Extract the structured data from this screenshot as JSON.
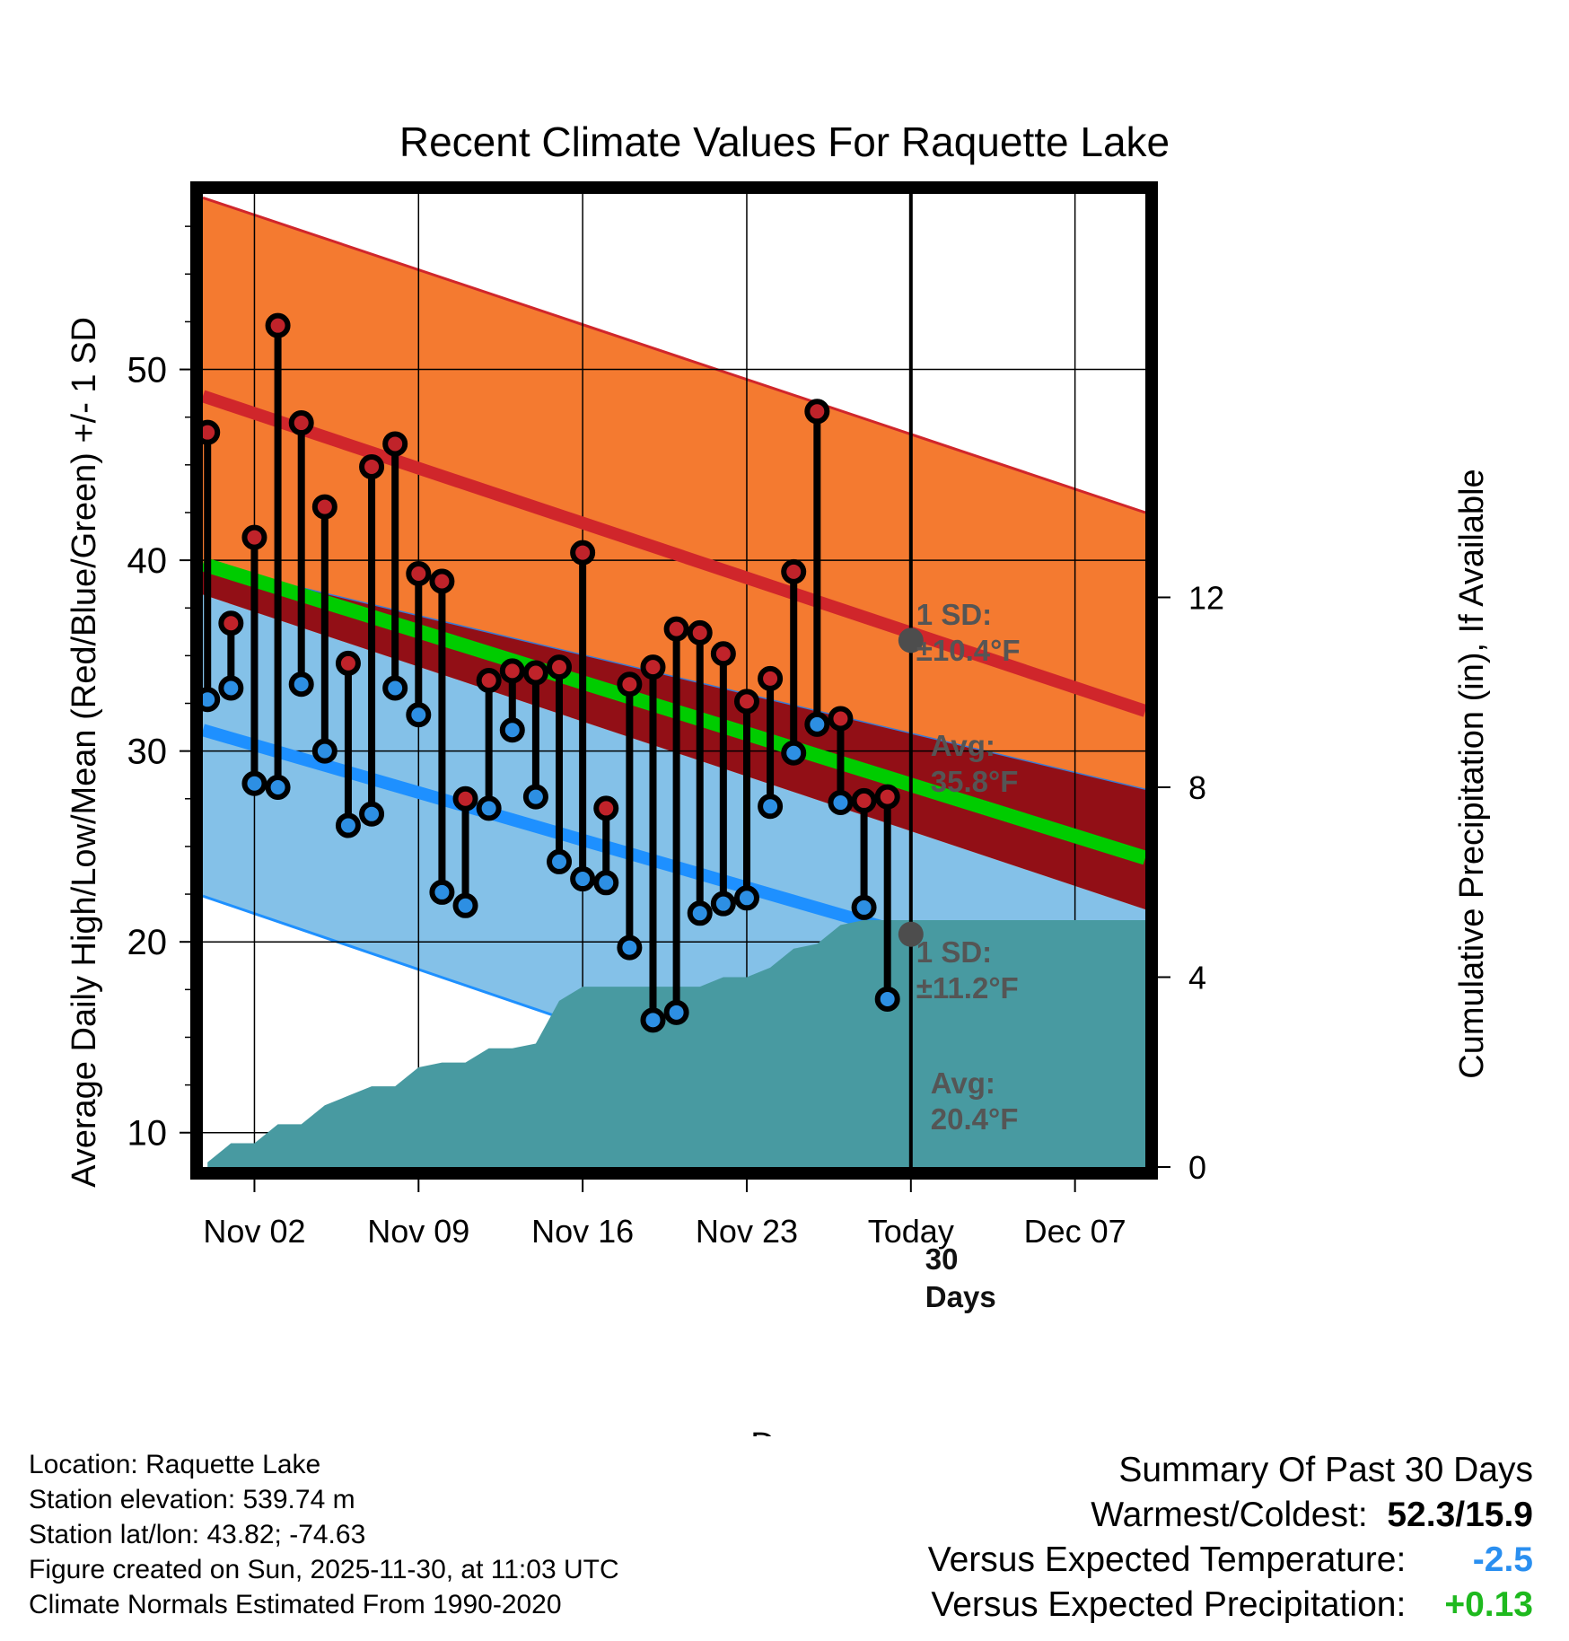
{
  "chart_data": {
    "type": "line",
    "title": "Recent Climate Values For Raquette Lake",
    "xlabel": "Day",
    "ylabel": "Average Daily High/Low/Mean (Red/Blue/Green) +/- 1 SD",
    "y2label": "Cumulative Precipitation (in), If Available",
    "x_range_days": [
      -30.2,
      10.0
    ],
    "ylim": [
      8.2,
      59.2
    ],
    "y2lim": [
      0,
      20.5
    ],
    "y_ticks": [
      10,
      20,
      30,
      40,
      50
    ],
    "y2_ticks": [
      0,
      4,
      8,
      12
    ],
    "x_ticks": [
      {
        "offset": -28,
        "label": "Nov 02"
      },
      {
        "offset": -21,
        "label": "Nov 09"
      },
      {
        "offset": -14,
        "label": "Nov 16"
      },
      {
        "offset": -7,
        "label": "Nov 23"
      },
      {
        "offset": 0,
        "label": "Today"
      },
      {
        "offset": 7,
        "label": "Dec 07"
      }
    ],
    "normals_offsets": [
      -30.2,
      10
    ],
    "normal_high": [
      48.6,
      32.1
    ],
    "normal_high_sd_upper": [
      59.0,
      42.5
    ],
    "normal_low": [
      31.1,
      16.8
    ],
    "normal_low_sd_lower": [
      22.4,
      5.6
    ],
    "normal_mean": [
      39.8,
      24.4
    ],
    "series": [
      {
        "name": "Daily High",
        "color": "#c0232a",
        "offsets": [
          -30,
          -29,
          -28,
          -27,
          -26,
          -25,
          -24,
          -23,
          -22,
          -21,
          -20,
          -19,
          -18,
          -17,
          -16,
          -15,
          -14,
          -13,
          -12,
          -11,
          -10,
          -9,
          -8,
          -7,
          -6,
          -5,
          -4,
          -3,
          -2,
          -1
        ],
        "values": [
          46.7,
          36.7,
          41.2,
          52.3,
          47.2,
          42.8,
          34.6,
          44.9,
          46.1,
          39.3,
          38.9,
          27.5,
          33.7,
          34.2,
          34.1,
          34.4,
          40.4,
          27.0,
          33.5,
          34.4,
          36.4,
          36.2,
          35.1,
          32.6,
          33.8,
          39.4,
          47.8,
          31.7,
          27.4,
          27.6
        ]
      },
      {
        "name": "Daily Low",
        "color": "#2d8fe3",
        "offsets": [
          -30,
          -29,
          -28,
          -27,
          -26,
          -25,
          -24,
          -23,
          -22,
          -21,
          -20,
          -19,
          -18,
          -17,
          -16,
          -15,
          -14,
          -13,
          -12,
          -11,
          -10,
          -9,
          -8,
          -7,
          -6,
          -5,
          -4,
          -3,
          -2,
          -1
        ],
        "values": [
          32.7,
          33.3,
          28.3,
          28.1,
          33.5,
          30.0,
          26.1,
          26.7,
          33.3,
          31.9,
          22.6,
          21.9,
          27.0,
          31.1,
          27.6,
          24.2,
          23.3,
          23.1,
          19.7,
          15.9,
          16.3,
          21.5,
          22.0,
          22.3,
          27.1,
          29.9,
          31.4,
          27.3,
          21.8,
          17.0
        ]
      }
    ],
    "precipitation": {
      "name": "Cumulative Precipitation",
      "color": "#489aa1",
      "offsets": [
        -30,
        -29,
        -28,
        -27,
        -26,
        -25,
        -24,
        -23,
        -22,
        -21,
        -20,
        -19,
        -18,
        -17,
        -16,
        -15,
        -14,
        -13,
        -12,
        -11,
        -10,
        -9,
        -8,
        -7,
        -6,
        -5,
        -4,
        -3,
        -2,
        -1,
        0,
        10
      ],
      "values": [
        0.1,
        0.5,
        0.5,
        0.9,
        0.9,
        1.3,
        1.5,
        1.7,
        1.7,
        2.1,
        2.2,
        2.2,
        2.5,
        2.5,
        2.6,
        3.5,
        3.8,
        3.8,
        3.8,
        3.8,
        3.8,
        3.8,
        4.0,
        4.0,
        4.2,
        4.6,
        4.7,
        5.1,
        5.2,
        5.2,
        5.2,
        5.2
      ]
    },
    "annotations": {
      "high_sd_label": "1 SD:",
      "high_sd_value": "±10.4°F",
      "high_avg_label": "Avg:",
      "high_avg_value": "35.8°F",
      "low_sd_label": "1 SD:",
      "low_sd_value": "±11.2°F",
      "low_avg_label": "Avg:",
      "low_avg_value": "20.4°F",
      "days_count": "30",
      "days_label": "Days",
      "today_high_avg": 35.8,
      "today_low_avg": 20.4
    },
    "colors": {
      "high_band": "#f47a30",
      "high_line": "#d0262b",
      "low_band": "#84c1e8",
      "low_line": "#1e90ff",
      "overlap_band": "#920f16",
      "mean_line": "#00cc00",
      "precip": "#489aa1"
    }
  },
  "info": {
    "location": "Location: Raquette Lake",
    "elevation": "Station elevation: 539.74 m",
    "latlon": "Station lat/lon: 43.82; -74.63",
    "created": "Figure created on Sun, 2025-11-30, at 11:03 UTC",
    "normals": "Climate Normals Estimated From 1990-2020"
  },
  "summary": {
    "title": "Summary Of Past 30 Days",
    "warmest_label": "Warmest/Coldest:",
    "warmest_value": "52.3/15.9",
    "temp_label": "Versus Expected Temperature:",
    "temp_value": "-2.5",
    "temp_color": "#2a8ff0",
    "precip_label": "Versus Expected Precipitation:",
    "precip_value": "+0.13",
    "precip_color": "#1eb91e"
  }
}
